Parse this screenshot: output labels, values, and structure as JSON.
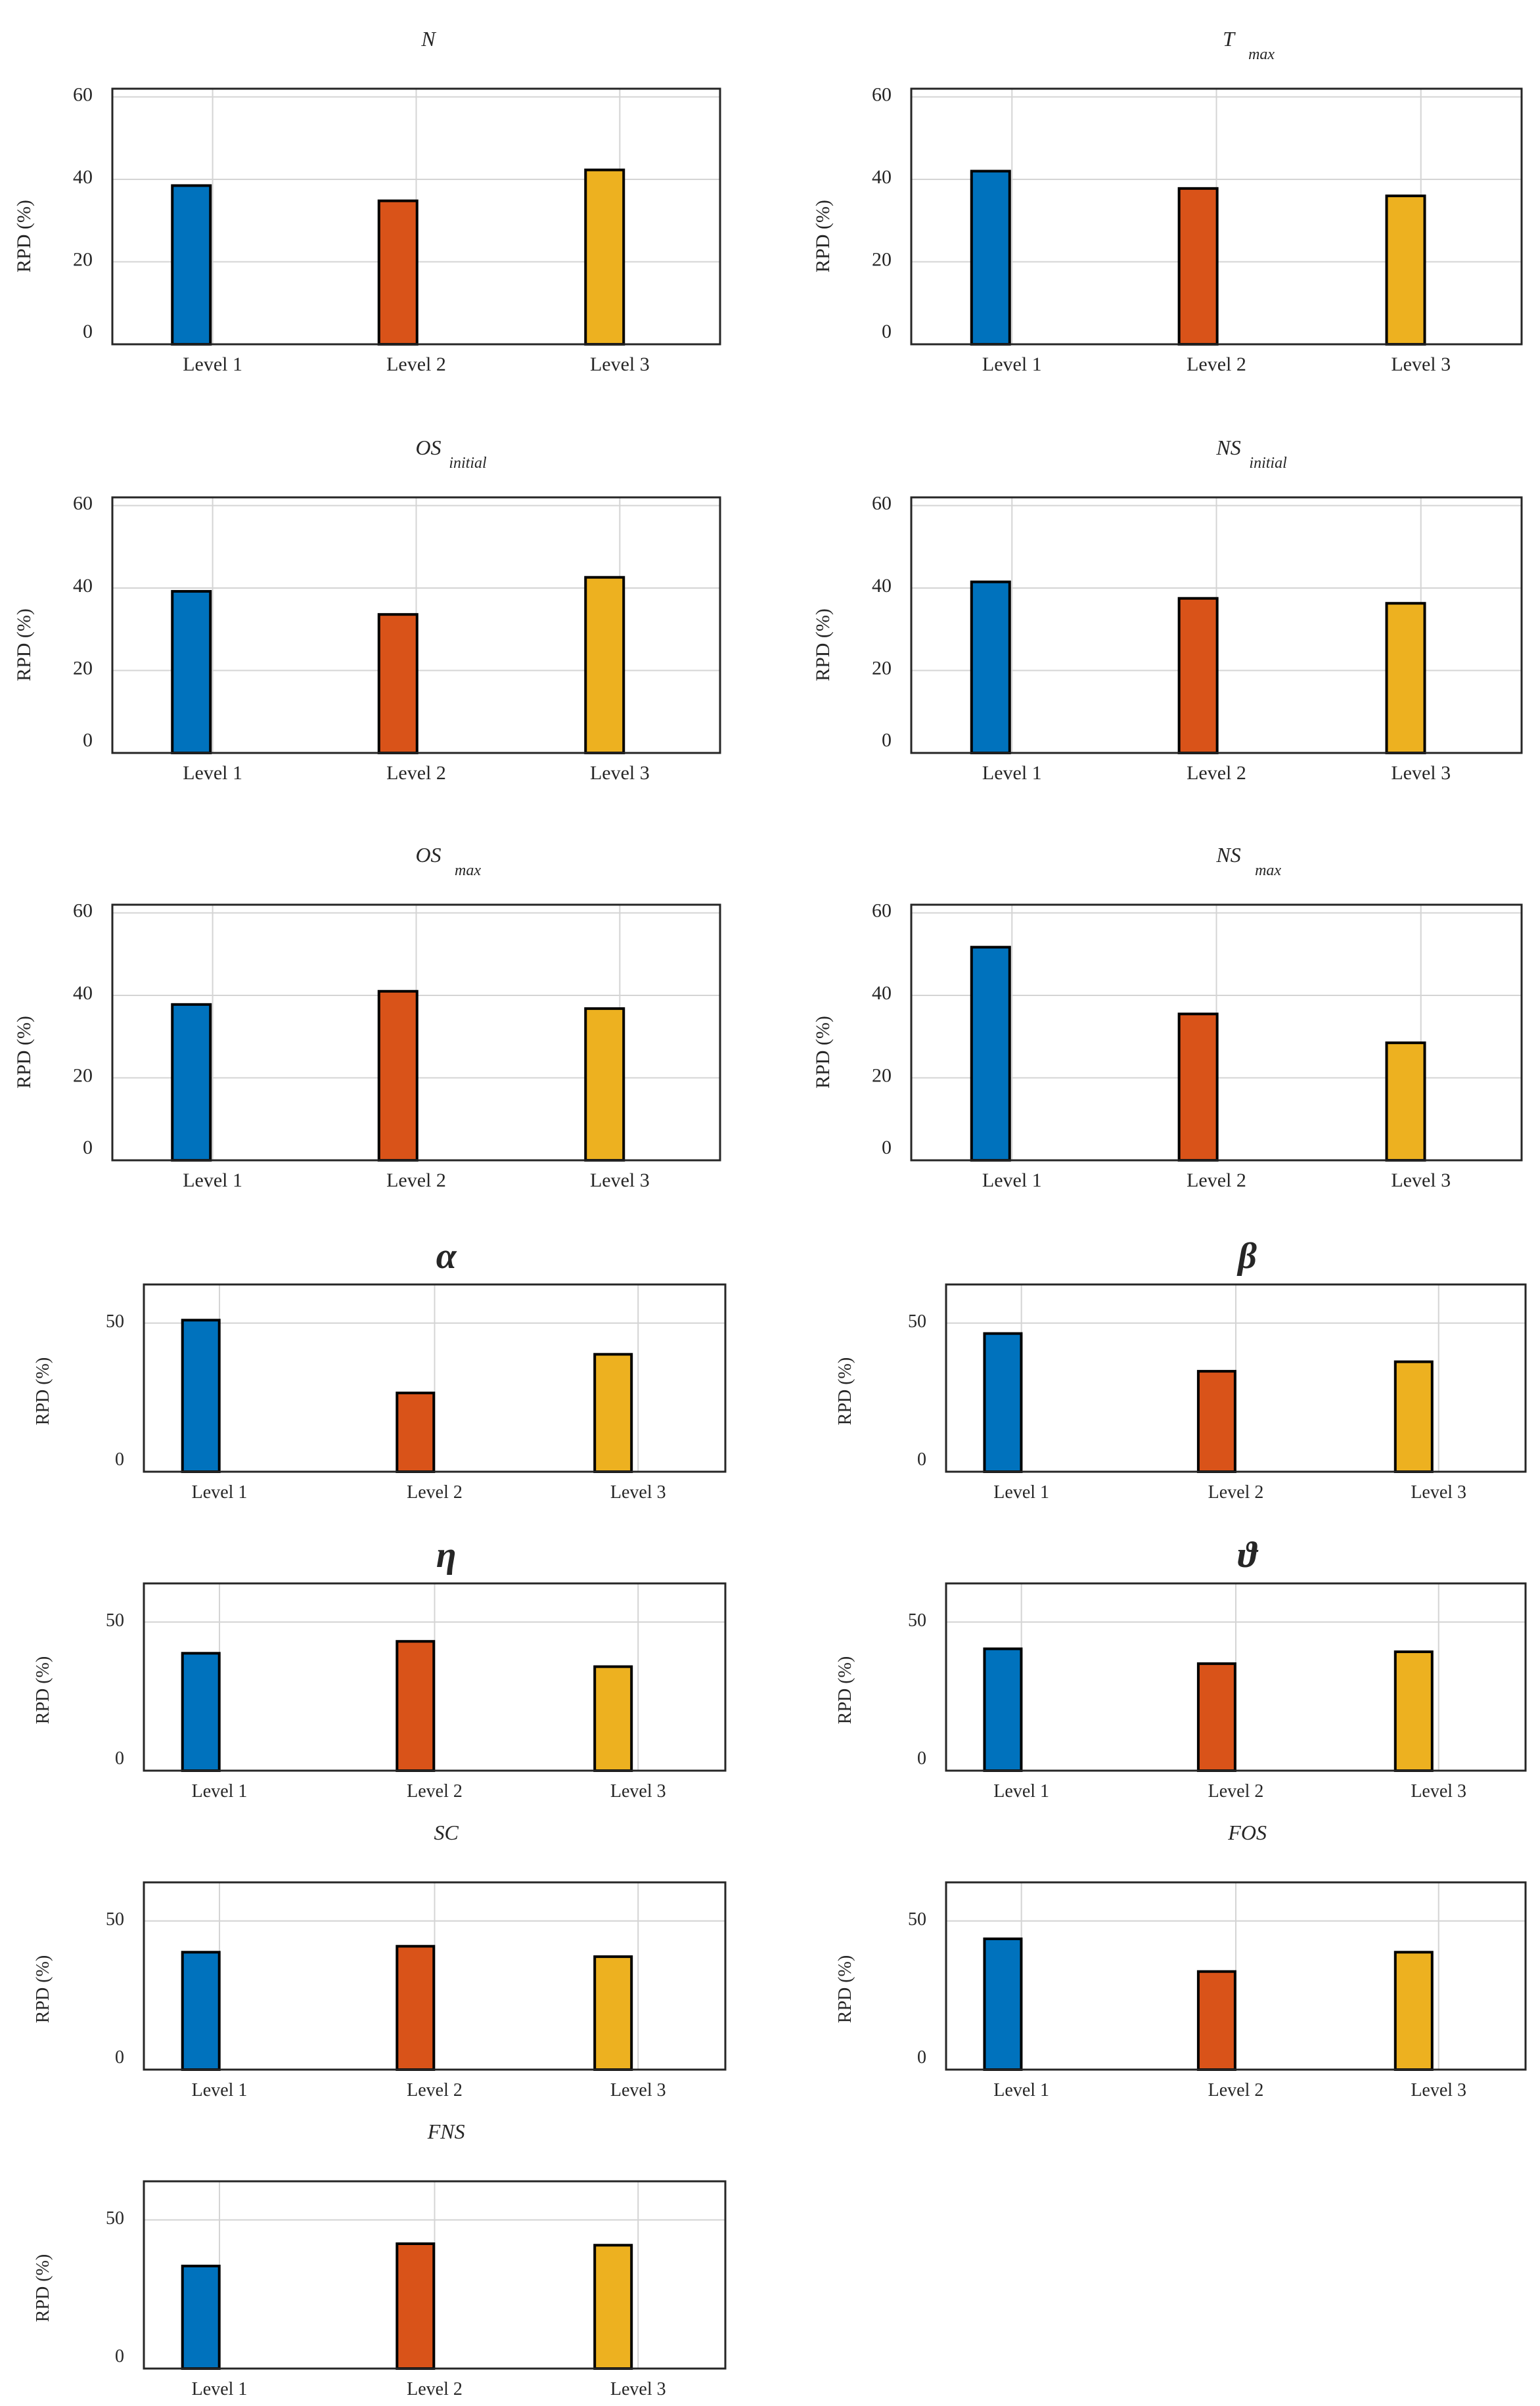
{
  "figure": {
    "colors": {
      "level1": "#0072BD",
      "level2": "#D95319",
      "level3": "#EDB120",
      "grid": "#d4d4d4",
      "axis": "#262626"
    }
  },
  "chart_data": [
    {
      "type": "bar",
      "title": "N",
      "title_sub": "",
      "categories": [
        "Level 1",
        "Level 2",
        "Level 3"
      ],
      "values": [
        38.5,
        34.8,
        42.3
      ],
      "ylabel": "RPD (%)",
      "xlabel": "",
      "ylim": [
        0,
        62
      ],
      "yticks": [
        0,
        20,
        40,
        60
      ],
      "grid": true,
      "style": "a"
    },
    {
      "type": "bar",
      "title": "T",
      "title_sub": "max",
      "categories": [
        "Level 1",
        "Level 2",
        "Level 3"
      ],
      "values": [
        42.0,
        37.8,
        36.0
      ],
      "ylabel": "RPD (%)",
      "xlabel": "",
      "ylim": [
        0,
        62
      ],
      "yticks": [
        0,
        20,
        40,
        60
      ],
      "grid": true,
      "style": "a"
    },
    {
      "type": "bar",
      "title": "OS",
      "title_sub": "initial",
      "categories": [
        "Level 1",
        "Level 2",
        "Level 3"
      ],
      "values": [
        39.2,
        33.6,
        42.6
      ],
      "ylabel": "RPD (%)",
      "xlabel": "",
      "ylim": [
        0,
        62
      ],
      "yticks": [
        0,
        20,
        40,
        60
      ],
      "grid": true,
      "style": "a"
    },
    {
      "type": "bar",
      "title": "NS",
      "title_sub": "initial",
      "categories": [
        "Level 1",
        "Level 2",
        "Level 3"
      ],
      "values": [
        41.5,
        37.5,
        36.3
      ],
      "ylabel": "RPD (%)",
      "xlabel": "",
      "ylim": [
        0,
        62
      ],
      "yticks": [
        0,
        20,
        40,
        60
      ],
      "grid": true,
      "style": "a"
    },
    {
      "type": "bar",
      "title": "OS",
      "title_sub": "max",
      "categories": [
        "Level 1",
        "Level 2",
        "Level 3"
      ],
      "values": [
        37.8,
        41.0,
        36.8
      ],
      "ylabel": "RPD (%)",
      "xlabel": "",
      "ylim": [
        0,
        62
      ],
      "yticks": [
        0,
        20,
        40,
        60
      ],
      "grid": true,
      "style": "a"
    },
    {
      "type": "bar",
      "title": "NS",
      "title_sub": "max",
      "categories": [
        "Level 1",
        "Level 2",
        "Level 3"
      ],
      "values": [
        51.7,
        35.5,
        28.5
      ],
      "ylabel": "RPD (%)",
      "xlabel": "",
      "ylim": [
        0,
        62
      ],
      "yticks": [
        0,
        20,
        40,
        60
      ],
      "grid": true,
      "style": "a"
    },
    {
      "type": "bar",
      "title": "α",
      "title_sub": "",
      "categories": [
        "Level 1",
        "Level 2",
        "Level 3"
      ],
      "values": [
        51.0,
        26.5,
        39.5
      ],
      "ylabel": "RPD (%)",
      "xlabel": "",
      "ylim": [
        0,
        63
      ],
      "yticks": [
        0,
        50
      ],
      "grid": true,
      "style": "b"
    },
    {
      "type": "bar",
      "title": "β",
      "title_sub": "",
      "categories": [
        "Level 1",
        "Level 2",
        "Level 3"
      ],
      "values": [
        46.5,
        33.8,
        37.0
      ],
      "ylabel": "RPD (%)",
      "xlabel": "",
      "ylim": [
        0,
        63
      ],
      "yticks": [
        0,
        50
      ],
      "grid": true,
      "style": "b"
    },
    {
      "type": "bar",
      "title": "η",
      "title_sub": "",
      "categories": [
        "Level 1",
        "Level 2",
        "Level 3"
      ],
      "values": [
        39.5,
        43.5,
        35.0
      ],
      "ylabel": "RPD (%)",
      "xlabel": "",
      "ylim": [
        0,
        63
      ],
      "yticks": [
        0,
        50
      ],
      "grid": true,
      "style": "b"
    },
    {
      "type": "bar",
      "title": "ϑ",
      "title_sub": "",
      "categories": [
        "Level 1",
        "Level 2",
        "Level 3"
      ],
      "values": [
        41.0,
        36.0,
        40.0
      ],
      "ylabel": "RPD (%)",
      "xlabel": "",
      "ylim": [
        0,
        63
      ],
      "yticks": [
        0,
        50
      ],
      "grid": true,
      "style": "b"
    },
    {
      "type": "bar",
      "title": "SC",
      "title_sub": "",
      "categories": [
        "Level 1",
        "Level 2",
        "Level 3"
      ],
      "values": [
        39.5,
        41.5,
        38.0
      ],
      "ylabel": "RPD (%)",
      "xlabel": "",
      "ylim": [
        0,
        63
      ],
      "yticks": [
        0,
        50
      ],
      "grid": true,
      "style": "b"
    },
    {
      "type": "bar",
      "title": "FOS",
      "title_sub": "",
      "categories": [
        "Level 1",
        "Level 2",
        "Level 3"
      ],
      "values": [
        44.0,
        33.0,
        39.5
      ],
      "ylabel": "RPD (%)",
      "xlabel": "",
      "ylim": [
        0,
        63
      ],
      "yticks": [
        0,
        50
      ],
      "grid": true,
      "style": "b"
    },
    {
      "type": "bar",
      "title": "FNS",
      "title_sub": "",
      "categories": [
        "Level 1",
        "Level 2",
        "Level 3"
      ],
      "values": [
        34.5,
        42.0,
        41.5
      ],
      "ylabel": "RPD (%)",
      "xlabel": "",
      "ylim": [
        0,
        63
      ],
      "yticks": [
        0,
        50
      ],
      "grid": true,
      "style": "b"
    }
  ]
}
